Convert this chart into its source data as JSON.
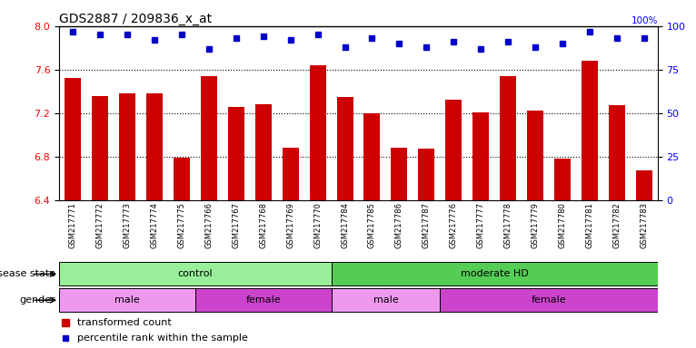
{
  "title": "GDS2887 / 209836_x_at",
  "samples": [
    "GSM217771",
    "GSM217772",
    "GSM217773",
    "GSM217774",
    "GSM217775",
    "GSM217766",
    "GSM217767",
    "GSM217768",
    "GSM217769",
    "GSM217770",
    "GSM217784",
    "GSM217785",
    "GSM217786",
    "GSM217787",
    "GSM217776",
    "GSM217777",
    "GSM217778",
    "GSM217779",
    "GSM217780",
    "GSM217781",
    "GSM217782",
    "GSM217783"
  ],
  "bar_values": [
    7.52,
    7.36,
    7.38,
    7.38,
    6.79,
    7.54,
    7.26,
    7.28,
    6.88,
    7.64,
    7.35,
    7.2,
    6.88,
    6.87,
    7.32,
    7.21,
    7.54,
    7.22,
    6.78,
    7.68,
    7.27,
    6.67
  ],
  "percentile_values": [
    97,
    95,
    95,
    92,
    95,
    87,
    93,
    94,
    92,
    95,
    88,
    93,
    90,
    88,
    91,
    87,
    91,
    88,
    90,
    97,
    93,
    93
  ],
  "ylim_left": [
    6.4,
    8.0
  ],
  "ylim_right": [
    0,
    100
  ],
  "yticks_left": [
    6.4,
    6.8,
    7.2,
    7.6,
    8.0
  ],
  "yticks_right": [
    0,
    25,
    50,
    75,
    100
  ],
  "bar_color": "#cc0000",
  "dot_color": "#0000cc",
  "bar_width": 0.6,
  "disease_groups": [
    {
      "label": "control",
      "start": 0,
      "end": 10,
      "color": "#99ee99"
    },
    {
      "label": "moderate HD",
      "start": 10,
      "end": 22,
      "color": "#55cc55"
    }
  ],
  "gender_groups": [
    {
      "label": "male",
      "start": 0,
      "end": 5,
      "color": "#ee99ee"
    },
    {
      "label": "female",
      "start": 5,
      "end": 10,
      "color": "#cc44cc"
    },
    {
      "label": "male",
      "start": 10,
      "end": 14,
      "color": "#ee99ee"
    },
    {
      "label": "female",
      "start": 14,
      "end": 22,
      "color": "#cc44cc"
    }
  ],
  "disease_label": "disease state",
  "gender_label": "gender",
  "legend_bar_label": "transformed count",
  "legend_dot_label": "percentile rank within the sample",
  "dotted_gridlines": [
    6.8,
    7.2,
    7.6
  ],
  "xticklabel_bg": "#d8d8d8"
}
